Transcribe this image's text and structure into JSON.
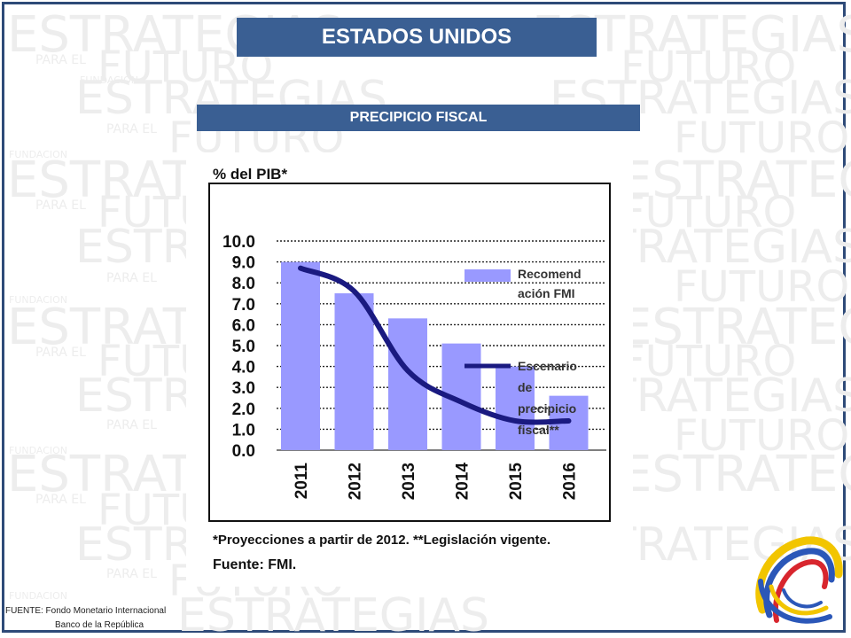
{
  "slide": {
    "title": "ESTADOS UNIDOS",
    "subtitle": "PRECIPICIO FISCAL",
    "footer_line1": "FUENTE: Fondo Monetario Internacional",
    "footer_line2": "Banco de la República",
    "watermark_words": [
      "ESTRATEGIAS",
      "PARA EL",
      "FUTURO",
      "FUNDACION"
    ],
    "colors": {
      "frame": "#2e4a78",
      "header_bar": "#3a5f93",
      "bar": "#9999ff",
      "line": "#1a1a80"
    }
  },
  "chart_data": {
    "type": "bar",
    "title": "% del PIB*",
    "categories": [
      "2011",
      "2012",
      "2013",
      "2014",
      "2015",
      "2016"
    ],
    "series": [
      {
        "name": "Recomendación FMI",
        "kind": "bar",
        "values": [
          9.0,
          7.5,
          6.3,
          5.1,
          4.0,
          2.6
        ]
      },
      {
        "name": "Escenario de precipicio fiscal**",
        "kind": "line",
        "values": [
          8.7,
          7.6,
          3.8,
          2.3,
          1.4,
          1.4
        ]
      }
    ],
    "legend_bar_lines": [
      "Recomend",
      "ación FMI"
    ],
    "legend_line_lines": [
      "Escenario",
      "de",
      "precipicio",
      "fiscal**"
    ],
    "yticks": [
      "10.0",
      "9.0",
      "8.0",
      "7.0",
      "6.0",
      "5.0",
      "4.0",
      "3.0",
      "2.0",
      "1.0",
      "0.0"
    ],
    "ylim": [
      0,
      10
    ],
    "grid": "dotted horizontal",
    "legend_position": "right",
    "note": "*Proyecciones a partir de 2012. **Legislación vigente.",
    "source": "Fuente: FMI."
  }
}
